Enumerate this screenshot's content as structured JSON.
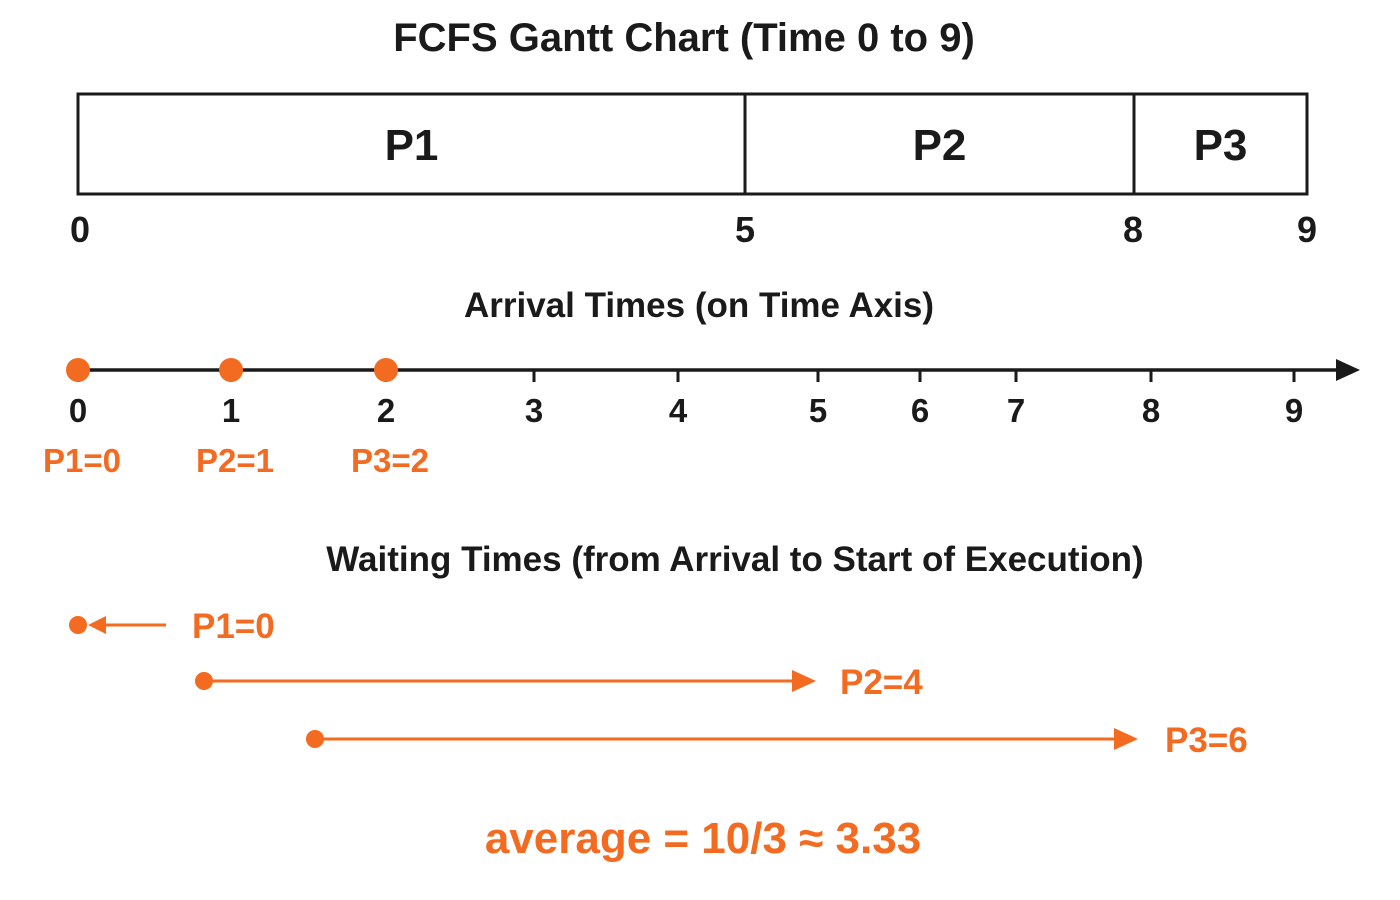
{
  "gantt": {
    "title": "FCFS Gantt Chart (Time 0 to 9)",
    "segments": [
      {
        "label": "P1",
        "start": 0,
        "end": 5
      },
      {
        "label": "P2",
        "start": 5,
        "end": 8
      },
      {
        "label": "P3",
        "start": 8,
        "end": 9
      }
    ],
    "time_labels": [
      "0",
      "5",
      "8",
      "9"
    ]
  },
  "arrival": {
    "title": "Arrival Times (on Time Axis)",
    "ticks": [
      "0",
      "1",
      "2",
      "3",
      "4",
      "5",
      "6",
      "7",
      "8",
      "9"
    ],
    "points": [
      {
        "time": 0,
        "label": "P1=0"
      },
      {
        "time": 1,
        "label": "P2=1"
      },
      {
        "time": 2,
        "label": "P3=2"
      }
    ]
  },
  "waiting": {
    "title": "Waiting Times (from Arrival to Start of Execution)",
    "items": [
      {
        "label": "P1=0",
        "value": 0
      },
      {
        "label": "P2=4",
        "value": 4
      },
      {
        "label": "P3=6",
        "value": 6
      }
    ]
  },
  "average_text": "average = 10/3 ≈ 3.33",
  "colors": {
    "accent": "#f36a21",
    "ink": "#1a1a1a"
  }
}
